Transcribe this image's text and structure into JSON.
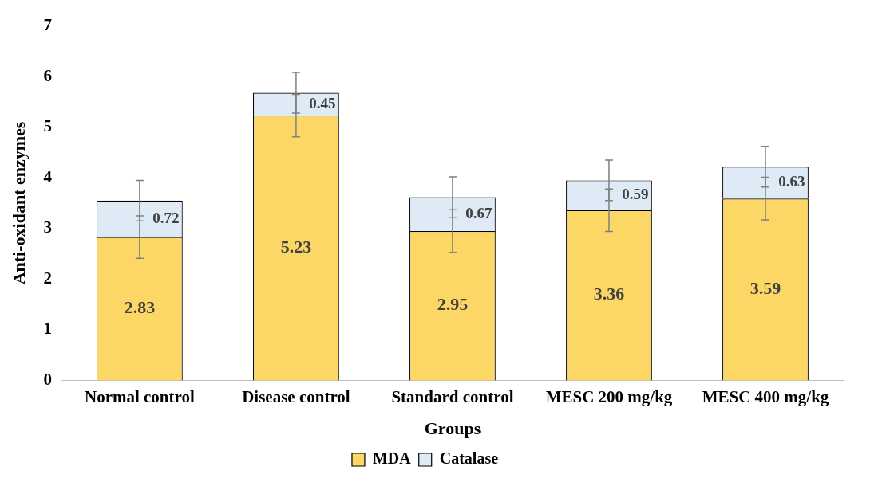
{
  "chart_data": {
    "type": "bar",
    "stacked": true,
    "xlabel": "Groups",
    "ylabel": "Anti-oxidant enzymes",
    "categories": [
      "Normal control",
      "Disease control",
      "Standard control",
      "MESC 200 mg/kg",
      "MESC 400 mg/kg"
    ],
    "series": [
      {
        "name": "MDA",
        "color": "#fdd766",
        "values": [
          2.83,
          5.23,
          2.95,
          3.36,
          3.59
        ],
        "errors": [
          0.42,
          0.42,
          0.42,
          0.42,
          0.42
        ]
      },
      {
        "name": "Catalase",
        "color": "#deebf7",
        "values": [
          0.72,
          0.45,
          0.67,
          0.59,
          0.63
        ],
        "errors": [
          0.4,
          0.4,
          0.4,
          0.4,
          0.4
        ]
      }
    ],
    "ylim": [
      0,
      7
    ],
    "yticks": [
      0,
      1,
      2,
      3,
      4,
      5,
      6,
      7
    ],
    "grid": false,
    "legend": "bottom",
    "data_labels": true
  }
}
